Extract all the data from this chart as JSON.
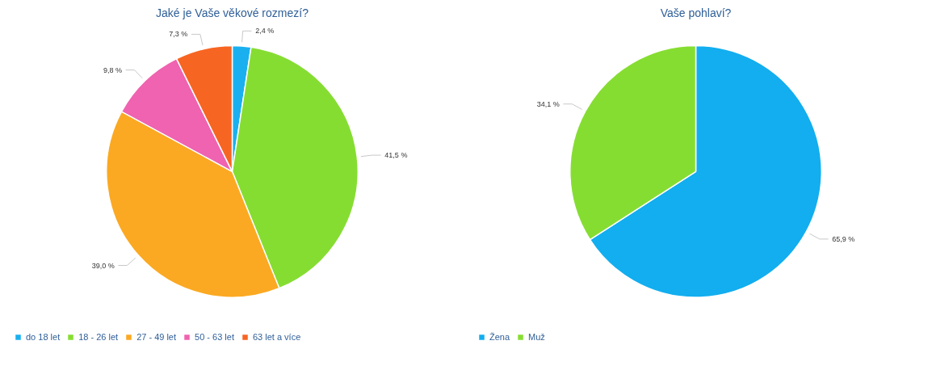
{
  "chart_data": [
    {
      "type": "pie",
      "title": "Jaké je Vaše věkové rozmezí?",
      "categories": [
        "do 18 let",
        "18 - 26 let",
        "27 - 49 let",
        "50 - 63 let",
        "63 let a více"
      ],
      "values": [
        2.4,
        41.5,
        39.0,
        9.8,
        7.3
      ],
      "colors": [
        "#1ab0ef",
        "#86dd32",
        "#fba922",
        "#ef63b0",
        "#f76522"
      ],
      "value_labels": [
        "2,4 %",
        "41,5 %",
        "39,0 %",
        "9,8 %",
        "7,3 %"
      ],
      "legend": "bottom"
    },
    {
      "type": "pie",
      "title": "Vaše pohlaví?",
      "categories": [
        "Žena",
        "Muž"
      ],
      "values": [
        65.9,
        34.1
      ],
      "colors": [
        "#12aeef",
        "#86dd32"
      ],
      "value_labels": [
        "65,9 %",
        "34,1 %"
      ],
      "legend": "bottom"
    }
  ]
}
